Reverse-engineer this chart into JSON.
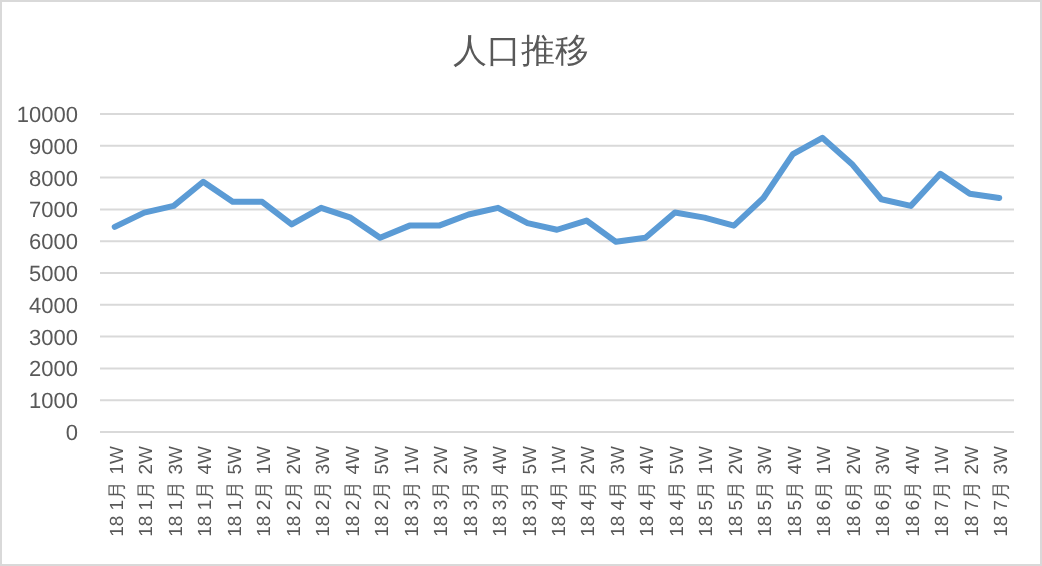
{
  "chart_data": {
    "type": "line",
    "title": "人口推移",
    "categories": [
      "18 1月 1W",
      "18 1月 2W",
      "18 1月 3W",
      "18 1月 4W",
      "18 1月 5W",
      "18 2月 1W",
      "18 2月 2W",
      "18 2月 3W",
      "18 2月 4W",
      "18 2月 5W",
      "18 3月 1W",
      "18 3月 2W",
      "18 3月 3W",
      "18 3月 4W",
      "18 3月 5W",
      "18 4月 1W",
      "18 4月 2W",
      "18 4月 3W",
      "18 4月 4W",
      "18 4月 5W",
      "18 5月 1W",
      "18 5月 2W",
      "18 5月 3W",
      "18 5月 4W",
      "18 6月 1W",
      "18 6月 2W",
      "18 6月 3W",
      "18 6月 4W",
      "18 7月 1W",
      "18 7月 2W",
      "18 7月 3W"
    ],
    "series": [
      {
        "color": "#5b9bd5",
        "values": [
          6450,
          6900,
          7110,
          7870,
          7240,
          7240,
          6530,
          7050,
          6740,
          6110,
          6490,
          6490,
          6840,
          7050,
          6570,
          6360,
          6650,
          5980,
          6110,
          6900,
          6740,
          6490,
          7360,
          8740,
          9250,
          8430,
          7320,
          7110,
          8120,
          7490,
          7360
        ]
      }
    ],
    "ylim": [
      0,
      10000
    ],
    "yticks": [
      0,
      1000,
      2000,
      3000,
      4000,
      5000,
      6000,
      7000,
      8000,
      9000,
      10000
    ],
    "grid": "y",
    "marker": "none",
    "line_style": "solid"
  }
}
